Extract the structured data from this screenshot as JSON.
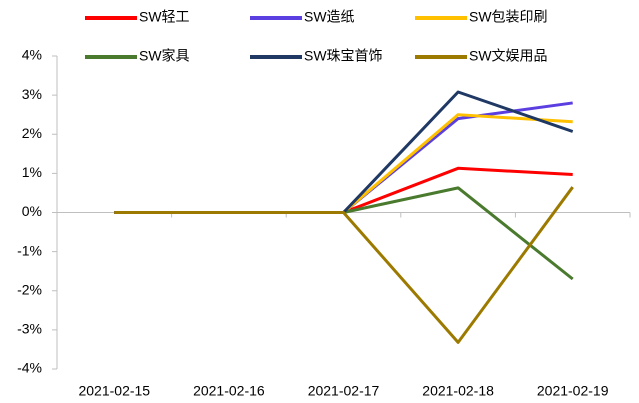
{
  "chart_data": {
    "type": "line",
    "categories": [
      "2021-02-15",
      "2021-02-16",
      "2021-02-17",
      "2021-02-18",
      "2021-02-19"
    ],
    "series": [
      {
        "name": "SW轻工",
        "color": "#ff0000",
        "values": [
          0,
          0,
          0,
          1.13,
          0.97
        ]
      },
      {
        "name": "SW造纸",
        "color": "#5b3fe0",
        "values": [
          0,
          0,
          0,
          2.4,
          2.8
        ]
      },
      {
        "name": "SW包装印刷",
        "color": "#ffc000",
        "values": [
          0,
          0,
          0,
          2.5,
          2.32
        ]
      },
      {
        "name": "SW家具",
        "color": "#4a7a2e",
        "values": [
          0,
          0,
          0,
          0.63,
          -1.7
        ]
      },
      {
        "name": "SW珠宝首饰",
        "color": "#1f3864",
        "values": [
          0,
          0,
          0,
          3.08,
          2.07
        ]
      },
      {
        "name": "SW文娱用品",
        "color": "#9c7a00",
        "values": [
          0,
          0,
          0,
          -3.32,
          0.65
        ]
      }
    ],
    "ylim": [
      -4,
      4
    ],
    "yticks": [
      {
        "value": -4,
        "label": "-4%"
      },
      {
        "value": -3,
        "label": "-3%"
      },
      {
        "value": -2,
        "label": "-2%"
      },
      {
        "value": -1,
        "label": "-1%"
      },
      {
        "value": 0,
        "label": "0%"
      },
      {
        "value": 1,
        "label": "1%"
      },
      {
        "value": 2,
        "label": "2%"
      },
      {
        "value": 3,
        "label": "3%"
      },
      {
        "value": 4,
        "label": "4%"
      }
    ],
    "legend": "top"
  }
}
